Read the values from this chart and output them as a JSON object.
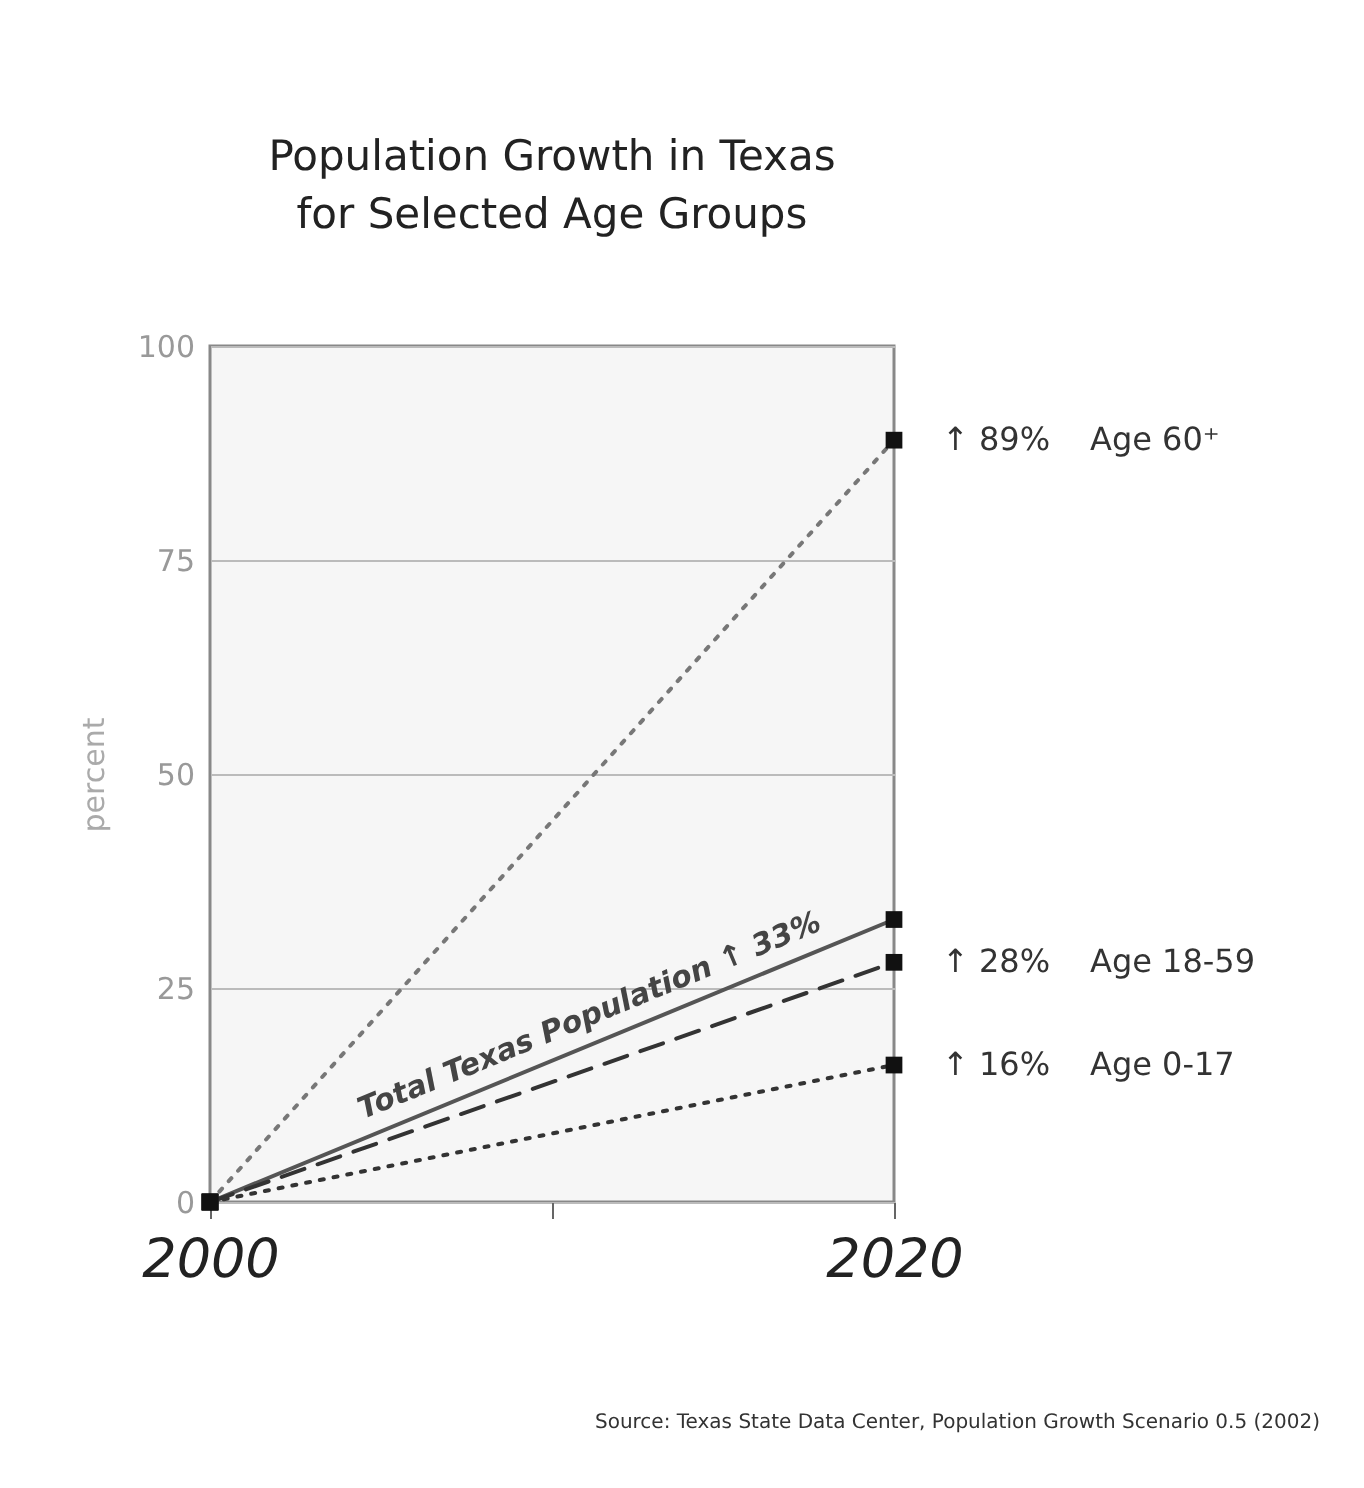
{
  "chart_data": {
    "type": "line",
    "title": "Population Growth in Texas\nfor Selected Age Groups",
    "ylabel": "percent",
    "x": [
      2000,
      2020
    ],
    "xlim": [
      2000,
      2020
    ],
    "xticks": [
      2000,
      {
        "value": 2010,
        "label": null
      },
      2020
    ],
    "ylim": [
      0,
      100
    ],
    "yticks": [
      0,
      25,
      50,
      75,
      100
    ],
    "grid": "y",
    "marker": "square",
    "series": [
      {
        "name": "Age 60⁺",
        "color": "#777777",
        "line_style": "dotted",
        "values": [
          0,
          89
        ],
        "value_labels": [
          null,
          "↑ 89%"
        ]
      },
      {
        "color": "#555555",
        "line_style": "solid",
        "values": [
          0,
          33
        ]
      },
      {
        "name": "Age 18-59",
        "color": "#333333",
        "line_style": "dashed",
        "values": [
          0,
          28
        ],
        "value_labels": [
          null,
          "↑ 28%"
        ]
      },
      {
        "name": "Age 0-17",
        "color": "#333333",
        "line_style": "dotted",
        "values": [
          0,
          16
        ],
        "value_labels": [
          null,
          "↑ 16%"
        ]
      }
    ],
    "annotations": [
      "Total Texas Population ↑ 33%",
      "Source: Texas State Data Center, Population Growth Scenario 0.5 (2002)"
    ]
  }
}
